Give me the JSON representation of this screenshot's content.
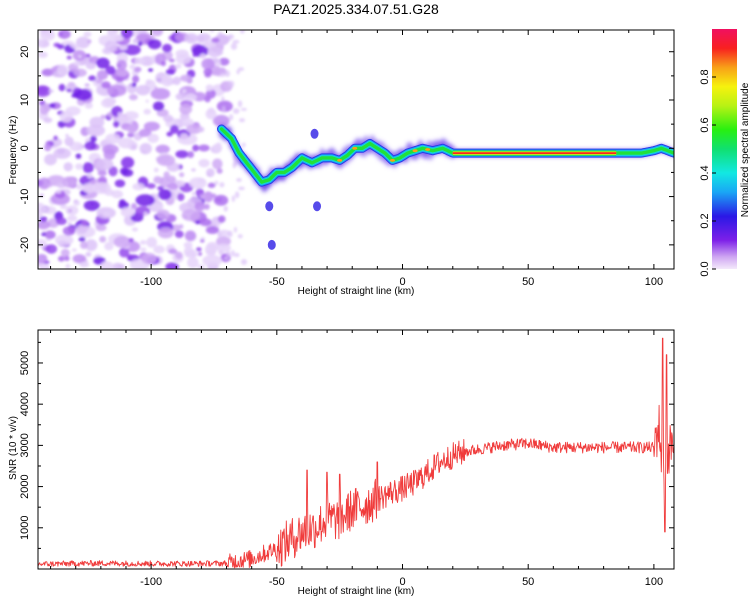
{
  "title": "PAZ1.2025.334.07.51.G28",
  "chart_data": [
    {
      "type": "heatmap",
      "name": "spectrogram",
      "xlabel": "Height of straight line (km)",
      "ylabel": "Frequency (Hz)",
      "xlim": [
        -145,
        108
      ],
      "ylim": [
        -25,
        24.5
      ],
      "xticks": [
        -100,
        -50,
        0,
        50,
        100
      ],
      "yticks": [
        20,
        10,
        0,
        -10,
        -20
      ],
      "colorbar": {
        "label": "Normalized spectral amplitude",
        "range": [
          0,
          1
        ],
        "ticks": [
          "0.0",
          "0.2",
          "0.4",
          "0.6",
          "0.8"
        ]
      },
      "noise_region_x": [
        -145,
        -72
      ],
      "signal_track": {
        "x": [
          -72,
          -68,
          -65,
          -62,
          -59,
          -56,
          -53,
          -50,
          -47,
          -44,
          -40,
          -36,
          -32,
          -28,
          -25,
          -22,
          -19,
          -16,
          -13,
          -10,
          -7,
          -4,
          -1,
          2,
          5,
          8,
          12,
          16,
          20,
          25,
          40,
          60,
          80,
          95,
          100,
          103,
          108
        ],
        "freq": [
          4,
          2,
          -1,
          -3,
          -5,
          -7,
          -6.5,
          -5,
          -5,
          -4,
          -2,
          -3,
          -2,
          -2,
          -2.5,
          -1.5,
          0,
          0,
          1,
          0,
          -1,
          -2.5,
          -2,
          -1,
          -0.5,
          0,
          -0.5,
          0,
          -1,
          -1,
          -1,
          -1,
          -1,
          -1,
          -0.5,
          0,
          -1
        ]
      },
      "outliers": [
        {
          "x": -53,
          "freq": -12
        },
        {
          "x": -35,
          "freq": 3
        },
        {
          "x": -34,
          "freq": -12
        },
        {
          "x": -52,
          "freq": -20
        }
      ]
    },
    {
      "type": "line",
      "name": "snr",
      "color": "#f03c3c",
      "xlabel": "Height of straight line (km)",
      "ylabel": "SNR (10 * v/v)",
      "xlim": [
        -145,
        108
      ],
      "ylim": [
        0,
        5800
      ],
      "xticks": [
        -100,
        -50,
        0,
        50,
        100
      ],
      "yticks": [
        1000,
        2000,
        3000,
        4000,
        5000
      ],
      "trend": {
        "x": [
          -145,
          -120,
          -100,
          -80,
          -70,
          -60,
          -50,
          -45,
          -40,
          -35,
          -30,
          -25,
          -20,
          -15,
          -10,
          -5,
          0,
          5,
          10,
          15,
          20,
          25,
          30,
          40,
          50,
          60,
          70,
          80,
          90,
          95,
          100,
          102,
          104,
          106,
          108
        ],
        "y": [
          120,
          140,
          130,
          130,
          140,
          250,
          500,
          700,
          900,
          1000,
          1200,
          1200,
          1450,
          1550,
          1700,
          1850,
          1950,
          2100,
          2350,
          2600,
          2750,
          2850,
          2900,
          3000,
          3050,
          2950,
          2950,
          2950,
          2950,
          2950,
          2950,
          3500,
          2000,
          2900,
          3100
        ]
      },
      "spikes": [
        {
          "x": -38,
          "y": 2400
        },
        {
          "x": -30,
          "y": 2350
        },
        {
          "x": -25,
          "y": 2300
        },
        {
          "x": -10,
          "y": 2600
        },
        {
          "x": 103.5,
          "y": 5600
        },
        {
          "x": 104.3,
          "y": 900
        },
        {
          "x": 105,
          "y": 5200
        }
      ]
    }
  ]
}
